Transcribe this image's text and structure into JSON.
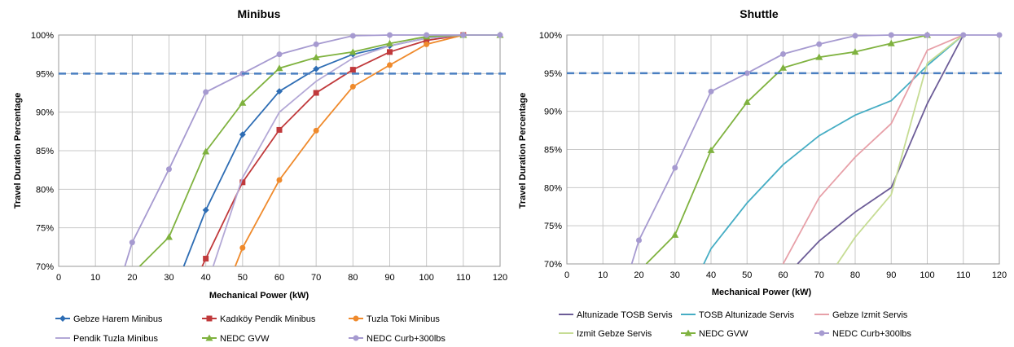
{
  "colors": {
    "threshold": "#4a7fc1"
  },
  "chart_data": [
    {
      "type": "line",
      "title": "Minibus",
      "xlabel": "Mechanical Power (kW)",
      "ylabel": "Travel Duration Percentage",
      "xlim": [
        0,
        120
      ],
      "ylim": [
        70,
        100
      ],
      "x_ticks": [
        "0",
        "10",
        "20",
        "30",
        "40",
        "50",
        "60",
        "70",
        "80",
        "90",
        "100",
        "110",
        "120"
      ],
      "y_ticks": [
        "70%",
        "75%",
        "80%",
        "85%",
        "90%",
        "95%",
        "100%"
      ],
      "threshold": 95,
      "grid": true,
      "legend_position": "bottom",
      "series": [
        {
          "name": "Gebze Harem Minibus",
          "color": "#2e6db4",
          "marker": "diamond",
          "x": [
            34,
            40,
            50,
            60,
            70,
            80,
            90,
            100,
            110
          ],
          "y": [
            70,
            77.3,
            87.1,
            92.7,
            95.6,
            97.5,
            98.6,
            99.6,
            100
          ]
        },
        {
          "name": "Kadıköy Pendik Minibus",
          "color": "#c0393b",
          "marker": "square",
          "x": [
            39,
            40,
            50,
            60,
            70,
            80,
            90,
            100,
            110
          ],
          "y": [
            70,
            71,
            80.9,
            87.7,
            92.5,
            95.5,
            97.8,
            99.3,
            100
          ]
        },
        {
          "name": "Tuzla Toki Minibus",
          "color": "#ef8a2c",
          "marker": "circle",
          "x": [
            48,
            50,
            60,
            70,
            80,
            90,
            100,
            110
          ],
          "y": [
            70,
            72.4,
            81.2,
            87.6,
            93.3,
            96.1,
            98.8,
            100
          ]
        },
        {
          "name": "Pendik Tuzla Minibus",
          "color": "#b3a8d6",
          "marker": "none",
          "x": [
            42,
            50,
            60,
            70,
            80,
            90,
            100,
            110
          ],
          "y": [
            70,
            81.5,
            90,
            94,
            97,
            98.6,
            99.6,
            100
          ]
        },
        {
          "name": "NEDC GVW",
          "color": "#7fb23f",
          "marker": "triangle",
          "x": [
            22,
            30,
            40,
            50,
            60,
            70,
            80,
            90,
            100,
            110,
            120
          ],
          "y": [
            70,
            73.8,
            84.9,
            91.2,
            95.7,
            97.1,
            97.8,
            98.9,
            99.8,
            100,
            100
          ]
        },
        {
          "name": "NEDC Curb+300lbs",
          "color": "#a69ad0",
          "marker": "circle",
          "x": [
            18,
            20,
            30,
            40,
            50,
            60,
            70,
            80,
            90,
            100,
            110,
            120
          ],
          "y": [
            70,
            73.1,
            82.6,
            92.6,
            95,
            97.5,
            98.8,
            99.9,
            100,
            100,
            100,
            100
          ]
        }
      ]
    },
    {
      "type": "line",
      "title": "Shuttle",
      "xlabel": "Mechanical Power (kW)",
      "ylabel": "Travel Duration Percentage",
      "xlim": [
        0,
        120
      ],
      "ylim": [
        70,
        100
      ],
      "x_ticks": [
        "0",
        "10",
        "20",
        "30",
        "40",
        "50",
        "60",
        "70",
        "80",
        "90",
        "100",
        "110",
        "120"
      ],
      "y_ticks": [
        "70%",
        "75%",
        "80%",
        "85%",
        "90%",
        "95%",
        "100%"
      ],
      "threshold": 95,
      "grid": true,
      "legend_position": "bottom",
      "series": [
        {
          "name": "Altunizade TOSB Servis",
          "color": "#6c5c97",
          "marker": "none",
          "x": [
            64,
            70,
            80,
            90,
            100,
            110
          ],
          "y": [
            70,
            73,
            76.8,
            80,
            91,
            100
          ]
        },
        {
          "name": "TOSB Altunizade Servis",
          "color": "#45adc4",
          "marker": "none",
          "x": [
            38,
            40,
            50,
            60,
            70,
            80,
            90,
            100,
            110
          ],
          "y": [
            70,
            72,
            78,
            83,
            86.8,
            89.5,
            91.4,
            96,
            100
          ]
        },
        {
          "name": "Gebze Izmit Servis",
          "color": "#e7a0a8",
          "marker": "none",
          "x": [
            60,
            70,
            80,
            90,
            100,
            110
          ],
          "y": [
            70,
            78.7,
            84,
            88.4,
            98,
            100
          ]
        },
        {
          "name": "Izmit Gebze Servis",
          "color": "#c6dc94",
          "marker": "none",
          "x": [
            75,
            80,
            90,
            100,
            110
          ],
          "y": [
            70,
            73.5,
            79.1,
            96.3,
            100
          ]
        },
        {
          "name": "NEDC GVW",
          "color": "#7fb23f",
          "marker": "triangle",
          "x": [
            22,
            30,
            40,
            50,
            60,
            70,
            80,
            90,
            100
          ],
          "y": [
            70,
            73.8,
            84.9,
            91.2,
            95.7,
            97.1,
            97.8,
            98.9,
            100
          ]
        },
        {
          "name": "NEDC Curb+300lbs",
          "color": "#a69ad0",
          "marker": "circle",
          "x": [
            18,
            20,
            30,
            40,
            50,
            60,
            70,
            80,
            90,
            100,
            110,
            120
          ],
          "y": [
            70,
            73.1,
            82.6,
            92.6,
            95,
            97.5,
            98.8,
            99.9,
            100,
            100,
            100,
            100
          ]
        }
      ]
    }
  ]
}
